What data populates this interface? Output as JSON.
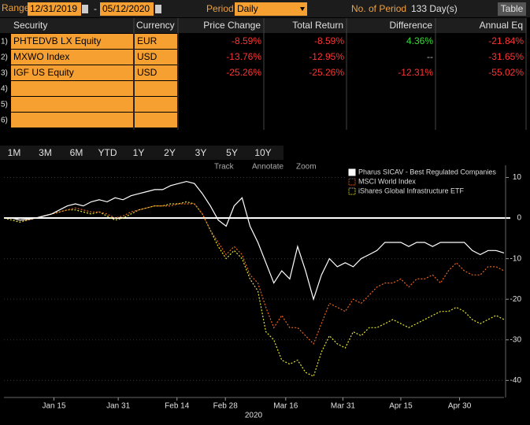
{
  "toolbar": {
    "range_label": "Range",
    "start": "12/31/2019",
    "separator": "-",
    "end": "05/12/2020",
    "period_label": "Period",
    "period": "Daily",
    "count_label": "No. of Period",
    "count": "133 Day(s)",
    "button": "Table"
  },
  "table": {
    "columns": [
      "Security",
      "Currency",
      "Price Change",
      "Total Return",
      "Difference",
      "Annual Eq"
    ],
    "rows": [
      [
        "1)",
        "PHTEDVB LX Equity",
        "EUR",
        "-8.59%",
        "-8.59%",
        "4.36%",
        "-21.84%"
      ],
      [
        "2)",
        "MXWO Index",
        "USD",
        "-13.76%",
        "-12.95%",
        "--",
        "-31.65%"
      ],
      [
        "3)",
        "IGF US Equity",
        "USD",
        "-25.26%",
        "-25.26%",
        "-12.31%",
        "-55.02%"
      ]
    ],
    "empty_rows": [
      "4)",
      "5)",
      "6)"
    ]
  },
  "periods": [
    "1M",
    "3M",
    "6M",
    "YTD",
    "1Y",
    "2Y",
    "3Y",
    "5Y",
    "10Y"
  ],
  "chart_tools": [
    "Track",
    "Annotate",
    "Zoom"
  ],
  "chart_data": {
    "type": "line",
    "x_label": "2020",
    "legend": "upper right",
    "xlim": [
      0,
      63
    ],
    "ylim": [
      -44,
      13
    ],
    "xticks": [
      {
        "value": 6.3,
        "label": "Jan 15"
      },
      {
        "value": 14.4,
        "label": "Jan 31"
      },
      {
        "value": 21.8,
        "label": "Feb 14"
      },
      {
        "value": 27.9,
        "label": "Feb 28"
      },
      {
        "value": 35.5,
        "label": "Mar 16"
      },
      {
        "value": 42.7,
        "label": "Mar 31"
      },
      {
        "value": 50,
        "label": "Apr 15"
      },
      {
        "value": 57.4,
        "label": "Apr 30"
      }
    ],
    "yticks": [
      10,
      0,
      -10,
      -20,
      -30,
      -40
    ],
    "series": [
      {
        "name": "Pharus SICAV - Best Regulated Companies",
        "color": "#ffffff",
        "dash": "none",
        "values": [
          0,
          0,
          -0.5,
          -0.3,
          0,
          0.5,
          1,
          2,
          3,
          3.5,
          3,
          4,
          4.5,
          4,
          5,
          4.5,
          5.5,
          6,
          6.5,
          7,
          7,
          8,
          8.5,
          9,
          8.5,
          6,
          3,
          -0.5,
          -2,
          3,
          5,
          -2,
          -6,
          -11,
          -16,
          -13,
          -15,
          -7,
          -13,
          -20,
          -14,
          -10,
          -12,
          -11,
          -12,
          -10,
          -9,
          -8,
          -6,
          -6,
          -6,
          -7,
          -6,
          -6,
          -7,
          -6,
          -6,
          -6,
          -6,
          -8,
          -9,
          -8,
          -8,
          -8.6
        ]
      },
      {
        "name": "MSCI World Index",
        "color": "#e8651e",
        "dash": "2 2",
        "values": [
          0,
          0,
          -0.5,
          -0.5,
          0,
          0.5,
          1,
          1.5,
          2,
          2.5,
          2,
          1.5,
          1.5,
          1,
          0,
          0.5,
          1.5,
          2,
          2.5,
          3,
          3,
          3,
          3.5,
          3.5,
          3.5,
          1,
          -3,
          -6,
          -9,
          -7,
          -9,
          -14,
          -16,
          -22,
          -27,
          -24,
          -27,
          -27,
          -29,
          -31,
          -26,
          -21,
          -22,
          -23,
          -20,
          -21,
          -19,
          -17,
          -16,
          -16,
          -15,
          -17,
          -15,
          -15,
          -14,
          -16,
          -13,
          -11,
          -13,
          -14,
          -14,
          -12,
          -12,
          -13
        ]
      },
      {
        "name": "iShares Global Infrastructure ETF",
        "color": "#e6e62e",
        "dash": "2 2",
        "values": [
          0,
          -0.5,
          -1,
          -0.5,
          0,
          0.5,
          1,
          1.5,
          2,
          2,
          1.5,
          1,
          1.5,
          0.5,
          -0.5,
          0,
          1,
          2,
          2.5,
          3,
          3,
          3.5,
          3.5,
          4,
          3.5,
          1,
          -3,
          -7,
          -10,
          -8,
          -10,
          -15,
          -18,
          -28,
          -30,
          -35,
          -36,
          -35,
          -38,
          -39,
          -33,
          -29,
          -31,
          -32,
          -28,
          -29,
          -27,
          -27,
          -26,
          -25,
          -26,
          -27,
          -26,
          -25,
          -24,
          -23,
          -23,
          -22,
          -23,
          -25,
          -26,
          -25,
          -24,
          -25
        ]
      }
    ]
  }
}
